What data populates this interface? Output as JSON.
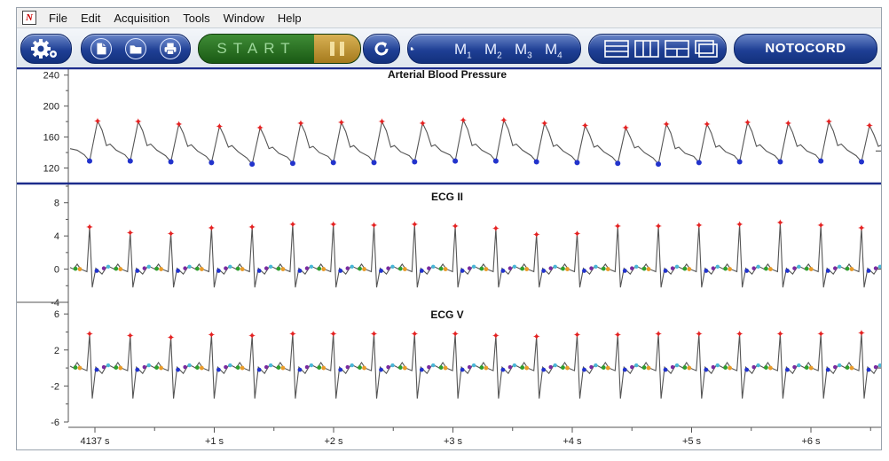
{
  "menu": {
    "items": [
      "File",
      "Edit",
      "Acquisition",
      "Tools",
      "Window",
      "Help"
    ]
  },
  "toolbar": {
    "icons": [
      "settings-gear-icon",
      "new-file-icon",
      "open-folder-icon",
      "print-icon",
      "reset-icon",
      "marker-icon",
      "layout-icons"
    ],
    "start_label": "START",
    "pause_label": "II",
    "markers": [
      {
        "letter": "M",
        "num": "1"
      },
      {
        "letter": "M",
        "num": "2"
      },
      {
        "letter": "M",
        "num": "3"
      },
      {
        "letter": "M",
        "num": "4"
      }
    ],
    "brand": "NOTOCORD"
  },
  "colors": {
    "toolbar_blue": "#1f3f95",
    "start_green": "#2f7a28",
    "pause_gold": "#c49a35",
    "separator": "#1c2c8c",
    "peak_marker": "#e52222",
    "trough_marker": "#2233cc",
    "trace": "#555555"
  },
  "chart_data": [
    {
      "type": "line",
      "title": "Arterial Blood Pressure",
      "xlabel": "",
      "ylabel": "",
      "ylim": [
        100,
        250
      ],
      "yticks": [
        120,
        160,
        200,
        240
      ],
      "ytick_labels": [
        "120",
        "160",
        "200",
        "240"
      ],
      "beats": 20,
      "systolic": [
        181,
        180,
        177,
        174,
        172,
        178,
        179,
        180,
        178,
        182,
        182,
        178,
        175,
        172,
        177,
        177,
        179,
        178,
        180,
        175
      ],
      "diastolic": [
        129,
        129,
        128,
        127,
        125,
        126,
        127,
        127,
        128,
        129,
        129,
        128,
        127,
        126,
        125,
        127,
        128,
        128,
        129,
        128
      ],
      "grid": false
    },
    {
      "type": "line",
      "title": "ECG II",
      "xlabel": "",
      "ylabel": "",
      "ylim": [
        -4,
        10
      ],
      "yticks": [
        -4,
        0,
        4,
        8
      ],
      "ytick_labels": [
        "-4",
        "0",
        "4",
        "8"
      ],
      "beats": 20,
      "r_peaks": [
        5.1,
        4.4,
        4.3,
        5.0,
        5.1,
        5.4,
        5.4,
        5.3,
        5.4,
        5.2,
        4.9,
        4.2,
        4.3,
        5.2,
        5.2,
        5.3,
        5.4,
        5.6,
        5.3,
        5.0
      ],
      "baseline": 0,
      "grid": false
    },
    {
      "type": "line",
      "title": "ECG V",
      "xlabel": "",
      "ylabel": "",
      "ylim": [
        -6,
        7
      ],
      "yticks": [
        -6,
        -2,
        2,
        6
      ],
      "ytick_labels": [
        "-6",
        "-2",
        "2",
        "6"
      ],
      "beats": 20,
      "r_peaks": [
        3.8,
        3.6,
        3.4,
        3.7,
        3.6,
        3.8,
        3.8,
        3.8,
        3.8,
        3.8,
        3.6,
        3.5,
        3.7,
        3.7,
        3.8,
        3.8,
        3.8,
        3.8,
        3.8,
        3.9
      ],
      "baseline": 0,
      "grid": false
    }
  ],
  "time_axis": {
    "labels": [
      "4137 s",
      "+1 s",
      "+2 s",
      "+3 s",
      "+4 s",
      "+5 s",
      "+6 s"
    ],
    "seconds": [
      0,
      1,
      2,
      3,
      4,
      5,
      6
    ]
  }
}
